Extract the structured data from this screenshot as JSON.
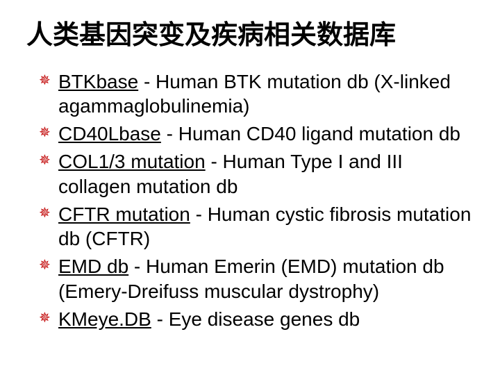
{
  "title": {
    "text": "人类基因突变及疾病相关数据库",
    "fontsize": 38,
    "color": "#000000",
    "weight": "bold"
  },
  "bullet": {
    "glyph": "✵",
    "color": "#c00000",
    "fontsize": 20
  },
  "body": {
    "fontsize": 28,
    "color": "#000000",
    "link_color": "#000000"
  },
  "items": [
    {
      "link": "BTKbase",
      "rest": " - Human BTK mutation db (X-linked agammaglobulinemia)"
    },
    {
      "link": "CD40Lbase",
      "rest": " - Human CD40 ligand mutation db"
    },
    {
      "link": "COL1/3 mutation",
      "rest": " - Human Type I and III collagen mutation db"
    },
    {
      "link": "CFTR mutation",
      "rest": " - Human cystic fibrosis mutation db (CFTR)"
    },
    {
      "link": "EMD db",
      "rest": " - Human Emerin (EMD) mutation db (Emery-Dreifuss muscular dystrophy)"
    },
    {
      "link": "KMeye.DB",
      "rest": " - Eye disease genes db"
    }
  ],
  "background_color": "#ffffff"
}
